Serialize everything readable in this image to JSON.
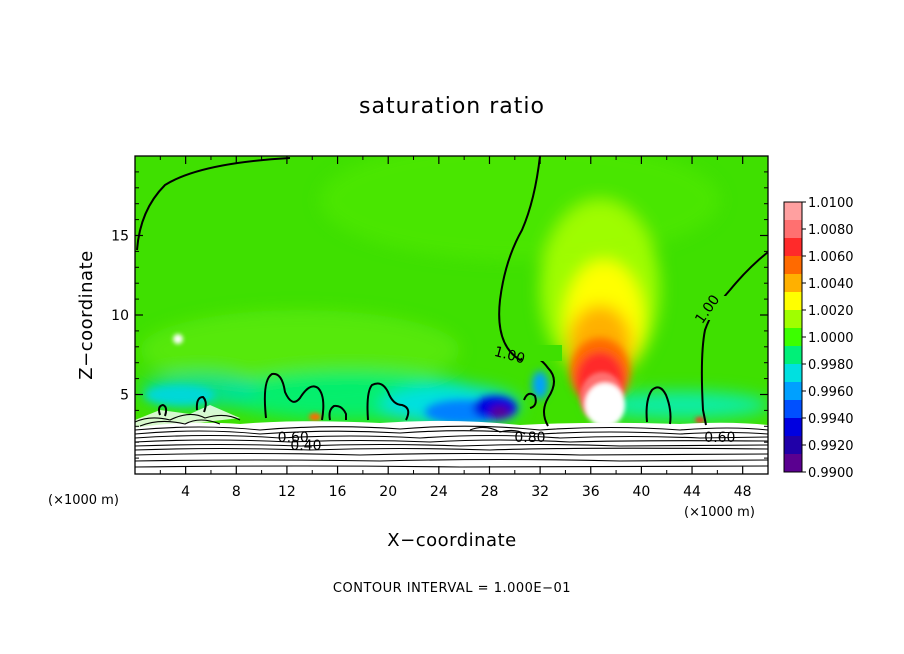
{
  "chart_data": {
    "type": "heatmap",
    "title": "saturation ratio",
    "xlabel": "X−coordinate",
    "ylabel": "Z−coordinate",
    "x_unit": "(×1000 m)",
    "y_unit": "(×1000 m)",
    "x_ticks": [
      4,
      8,
      12,
      16,
      20,
      24,
      28,
      32,
      36,
      40,
      44,
      48
    ],
    "y_ticks": [
      5,
      10,
      15
    ],
    "xlim": [
      0,
      50
    ],
    "ylim": [
      0,
      20
    ],
    "colorbar": {
      "levels": [
        "1.0100",
        "1.0080",
        "1.0060",
        "1.0040",
        "1.0020",
        "1.0000",
        "0.9980",
        "0.9960",
        "0.9940",
        "0.9920",
        "0.9900"
      ],
      "colors": [
        "#ffa0a0",
        "#ff7070",
        "#ff2a2a",
        "#ff6a00",
        "#ffb000",
        "#ffff00",
        "#a0ff00",
        "#3cff00",
        "#00f078",
        "#00e0e0",
        "#00a0ff",
        "#0050ff",
        "#0000e0",
        "#2000a8",
        "#5a0090"
      ]
    },
    "contour_interval_text": "CONTOUR INTERVAL = 1.000E−01",
    "contour_labels": [
      {
        "text": "1.00",
        "x": 29.5,
        "z": 7.2
      },
      {
        "text": "1.00",
        "x": 45.5,
        "z": 10.2
      },
      {
        "text": "0.60",
        "x": 12.5,
        "z": 2.0
      },
      {
        "text": "0.40",
        "x": 13.5,
        "z": 1.5
      },
      {
        "text": "0.80",
        "x": 31.2,
        "z": 2.0
      },
      {
        "text": "0.60",
        "x": 46.2,
        "z": 2.0
      }
    ],
    "field_regions": [
      {
        "desc": "background",
        "value": 1.0005
      },
      {
        "desc": "updraft core",
        "x": 37,
        "z": 5,
        "value": 1.01
      },
      {
        "desc": "dry pocket",
        "x": 28.5,
        "z": 3.8,
        "value": 0.992
      },
      {
        "desc": "boundary layer",
        "x_range": [
          0,
          50
        ],
        "z_range": [
          0,
          3
        ],
        "value": "below 0.99"
      }
    ]
  }
}
